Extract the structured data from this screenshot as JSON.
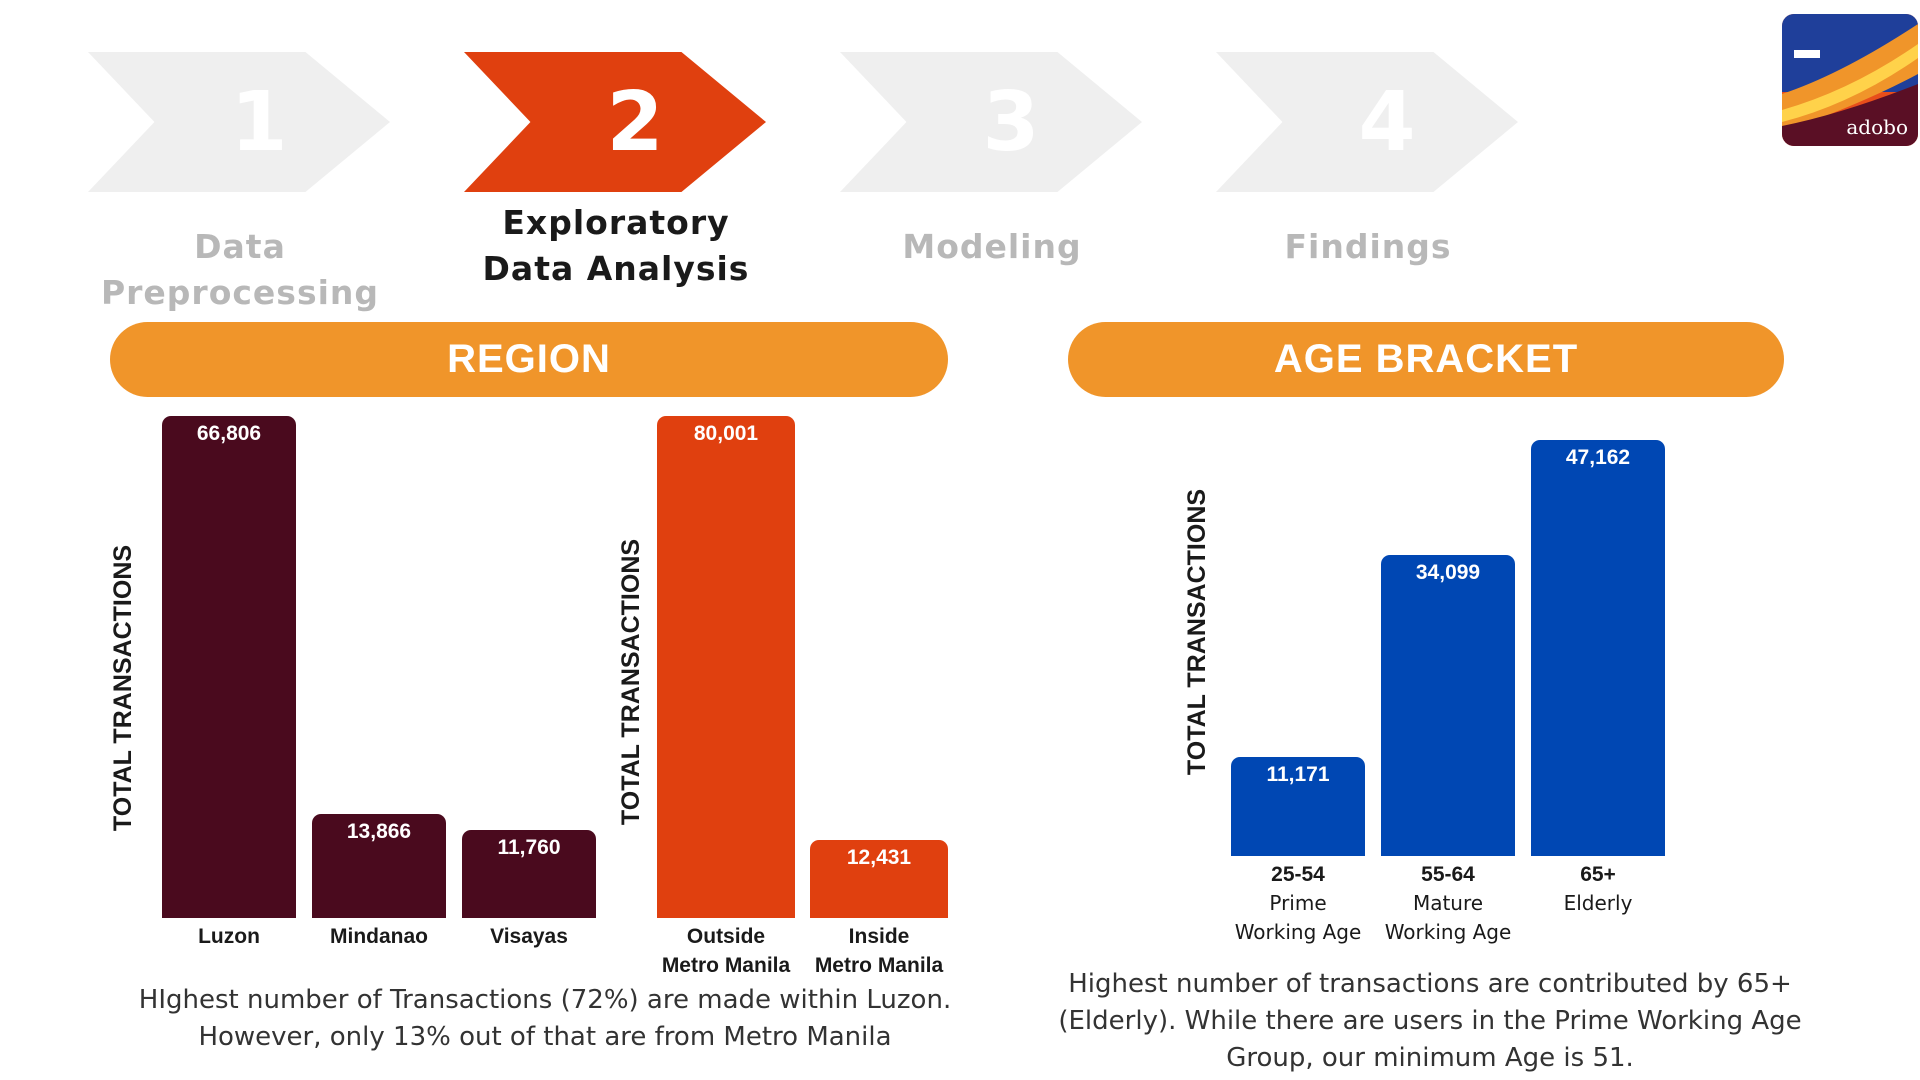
{
  "steps": [
    {
      "number": "1",
      "label_lines": [
        "Data Preprocessing"
      ],
      "active": false
    },
    {
      "number": "2",
      "label_lines": [
        "Exploratory",
        "Data Analysis"
      ],
      "active": true
    },
    {
      "number": "3",
      "label_lines": [
        "Modeling"
      ],
      "active": false
    },
    {
      "number": "4",
      "label_lines": [
        "Findings"
      ],
      "active": false
    }
  ],
  "logo": {
    "text": "adobo"
  },
  "sections": {
    "region": {
      "title": "REGION",
      "caption_lines": [
        "HIghest number of Transactions (72%) are made within Luzon.",
        "However, only 13% out of that are from Metro Manila"
      ]
    },
    "age": {
      "title": "AGE BRACKET",
      "caption_lines": [
        "Highest number of transactions are contributed by 65+",
        "(Elderly). While there are users in the Prime Working Age",
        "Group, our minimum Age is 51."
      ]
    }
  },
  "colors": {
    "accent": "#e0400f",
    "pill": "#f0952a",
    "maroon": "#4a0a1e",
    "blue": "#0047b3",
    "inactive": "#efefef"
  },
  "chart_data": [
    {
      "type": "bar",
      "ylabel": "TOTAL TRANSACTIONS",
      "color": "#4a0a1e",
      "categories": [
        [
          "Luzon"
        ],
        [
          "Mindanao"
        ],
        [
          "Visayas"
        ]
      ],
      "values": [
        66806,
        13866,
        11760
      ],
      "value_labels": [
        "66,806",
        "13,866",
        "11,760"
      ]
    },
    {
      "type": "bar",
      "ylabel": "TOTAL TRANSACTIONS",
      "color": "#e0400f",
      "categories": [
        [
          "Outside",
          "Metro Manila"
        ],
        [
          "Inside",
          "Metro Manila"
        ]
      ],
      "values": [
        80001,
        12431
      ],
      "value_labels": [
        "80,001",
        "12,431"
      ]
    },
    {
      "type": "bar",
      "ylabel": "TOTAL TRANSACTIONS",
      "color": "#0047b3",
      "categories": [
        [
          "25-54",
          "Prime",
          "Working Age"
        ],
        [
          "55-64",
          "Mature",
          "Working Age"
        ],
        [
          "65+",
          "Elderly"
        ]
      ],
      "values": [
        11171,
        34099,
        47162
      ],
      "value_labels": [
        "11,171",
        "34,099",
        "47,162"
      ]
    }
  ]
}
